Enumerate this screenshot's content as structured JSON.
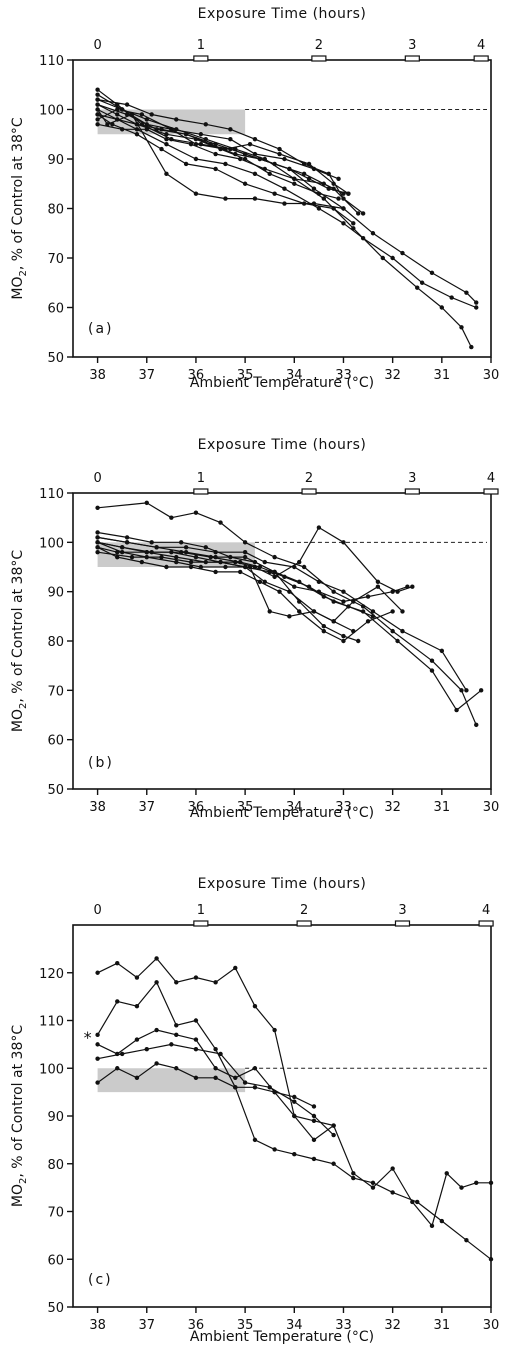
{
  "figure": {
    "xlabel_top": "Exposure Time (hours)",
    "xlabel_bottom": "Ambient Temperature (°C)",
    "ylabel_main": "MO",
    "ylabel_sub": "2",
    "ylabel_rest": ", % of Control at 38°C",
    "asterisk": "*"
  },
  "chart_data": [
    {
      "type": "line",
      "panel_label": "(a)",
      "x_axis": {
        "reversed": true,
        "xlim": [
          38.5,
          30
        ],
        "ticks": [
          "38",
          "37",
          "36",
          "35",
          "34",
          "33",
          "32",
          "31",
          "30"
        ]
      },
      "top_axis": {
        "ticks": [
          "0",
          "1",
          "2",
          "3",
          "4"
        ],
        "tick_temperatures": [
          38,
          35.9,
          33.5,
          31.6,
          30.2
        ]
      },
      "y_axis": {
        "ylim": [
          50,
          110
        ],
        "ticks": [
          "50",
          "60",
          "70",
          "80",
          "90",
          "100",
          "110"
        ]
      },
      "reference_line": 100,
      "shaded_band": {
        "x": [
          38,
          35
        ],
        "y": [
          95,
          100
        ]
      },
      "series": [
        {
          "x": [
            38.0,
            37.6,
            37.2,
            36.6,
            36.0,
            35.4,
            34.8,
            34.2,
            33.5,
            33.0,
            32.6,
            32.0,
            31.4,
            30.8,
            30.3
          ],
          "y": [
            100,
            98,
            96,
            93,
            90,
            89,
            87,
            84,
            80,
            77,
            74,
            70,
            65,
            62,
            60
          ]
        },
        {
          "x": [
            38.0,
            37.5,
            37.0,
            36.4,
            35.8,
            35.2,
            34.6,
            34.0,
            33.4,
            32.8,
            32.2,
            31.5,
            31.0,
            30.6,
            30.4
          ],
          "y": [
            102,
            100,
            98,
            96,
            94,
            92,
            90,
            86,
            82,
            76,
            70,
            64,
            60,
            56,
            52
          ]
        },
        {
          "x": [
            38.0,
            37.6,
            37.1,
            36.5,
            35.9,
            35.3,
            34.7,
            34.1,
            33.6,
            33.0,
            32.4,
            31.8,
            31.2,
            30.5,
            30.3
          ],
          "y": [
            104,
            101,
            97,
            94,
            93,
            92,
            90,
            88,
            84,
            80,
            75,
            71,
            67,
            63,
            61
          ]
        },
        {
          "x": [
            38.0,
            37.7,
            37.2,
            36.7,
            36.2,
            35.6,
            35.0,
            34.4,
            33.8,
            33.2,
            32.8
          ],
          "y": [
            99,
            97,
            95,
            92,
            89,
            88,
            85,
            83,
            81,
            80,
            77
          ]
        },
        {
          "x": [
            38.0,
            37.4,
            36.8,
            36.2,
            35.6,
            35.0,
            34.4,
            33.8,
            33.2,
            32.7
          ],
          "y": [
            101,
            99,
            96,
            95,
            93,
            91,
            89,
            87,
            84,
            79
          ]
        },
        {
          "x": [
            38.0,
            37.5,
            37.0,
            36.5,
            35.9,
            35.3,
            34.8,
            34.2,
            33.6,
            33.1
          ],
          "y": [
            103,
            100,
            97,
            96,
            95,
            94,
            91,
            90,
            88,
            86
          ]
        },
        {
          "x": [
            38.0,
            37.6,
            37.1,
            36.5,
            36.0,
            35.4,
            34.9,
            34.3,
            33.7,
            33.2,
            32.9
          ],
          "y": [
            98,
            100,
            99,
            96,
            93,
            92,
            93,
            91,
            89,
            85,
            83
          ]
        },
        {
          "x": [
            38.0,
            37.8,
            37.3,
            36.6,
            36.0,
            35.4,
            34.8,
            34.2,
            33.6,
            33.0
          ],
          "y": [
            100,
            97,
            99,
            87,
            83,
            82,
            82,
            81,
            81,
            80
          ]
        },
        {
          "x": [
            38.0,
            37.6,
            37.2,
            36.7,
            36.2,
            35.7,
            35.2,
            34.7,
            34.1,
            33.7,
            33.3,
            32.9
          ],
          "y": [
            101,
            99,
            97,
            96,
            95,
            93,
            91,
            90,
            88,
            86,
            84,
            83
          ]
        },
        {
          "x": [
            38.0,
            37.5,
            37.0,
            36.6,
            36.1,
            35.6,
            35.1,
            34.6,
            34.0,
            33.4,
            33.0
          ],
          "y": [
            97,
            96,
            96,
            94,
            93,
            91,
            90,
            88,
            86,
            85,
            83
          ]
        },
        {
          "x": [
            38.0,
            37.4,
            36.9,
            36.4,
            35.8,
            35.3,
            34.8,
            34.3,
            33.8,
            33.3,
            33.0,
            32.6
          ],
          "y": [
            102,
            101,
            99,
            98,
            97,
            96,
            94,
            92,
            89,
            87,
            82,
            79
          ]
        },
        {
          "x": [
            38.0,
            37.6,
            37.2,
            36.6,
            36.0,
            35.5,
            35.0,
            34.5,
            34.0,
            33.5,
            33.1
          ],
          "y": [
            99,
            98,
            97,
            95,
            94,
            92,
            90,
            87,
            85,
            83,
            82
          ]
        }
      ]
    },
    {
      "type": "line",
      "panel_label": "(b)",
      "x_axis": {
        "reversed": true,
        "xlim": [
          38.5,
          30
        ],
        "ticks": [
          "38",
          "37",
          "36",
          "35",
          "34",
          "33",
          "32",
          "31",
          "30"
        ]
      },
      "top_axis": {
        "ticks": [
          "0",
          "1",
          "2",
          "3",
          "4"
        ],
        "tick_temperatures": [
          38,
          35.9,
          33.7,
          31.6,
          30.0
        ]
      },
      "y_axis": {
        "ylim": [
          50,
          110
        ],
        "ticks": [
          "50",
          "60",
          "70",
          "80",
          "90",
          "100",
          "110"
        ]
      },
      "reference_line": 100,
      "shaded_band": {
        "x": [
          38,
          34.8
        ],
        "y": [
          95,
          100
        ]
      },
      "series": [
        {
          "x": [
            38.0,
            37.0,
            36.5,
            36.0,
            35.5,
            35.0,
            34.4,
            33.8,
            33.2,
            32.6,
            32.0,
            31.2,
            30.6,
            30.3
          ],
          "y": [
            107,
            108,
            105,
            106,
            104,
            100,
            97,
            95,
            90,
            87,
            82,
            76,
            70,
            63
          ]
        },
        {
          "x": [
            38.0,
            37.4,
            36.8,
            36.2,
            35.6,
            35.0,
            34.6,
            34.0,
            33.5,
            33.0,
            32.4,
            31.8,
            31.0,
            30.5
          ],
          "y": [
            101,
            100,
            99,
            99,
            98,
            98,
            96,
            95,
            92,
            90,
            86,
            82,
            78,
            70
          ]
        },
        {
          "x": [
            38.0,
            37.5,
            36.9,
            36.3,
            35.7,
            35.1,
            34.7,
            34.2,
            33.7,
            33.2,
            32.6,
            31.9,
            31.2,
            30.7,
            30.2
          ],
          "y": [
            100,
            99,
            98,
            98,
            97,
            96,
            95,
            93,
            91,
            88,
            86,
            80,
            74,
            66,
            70
          ]
        },
        {
          "x": [
            38.0,
            37.6,
            37.0,
            36.4,
            35.8,
            35.2,
            34.8,
            34.4,
            33.9,
            33.5,
            33.0,
            32.3,
            31.9,
            31.6
          ],
          "y": [
            99,
            98,
            98,
            97,
            96,
            96,
            95,
            93,
            96,
            103,
            100,
            92,
            90,
            91
          ]
        },
        {
          "x": [
            38.0,
            37.3,
            36.7,
            36.1,
            35.5,
            35.0,
            34.6,
            34.1,
            33.6,
            33.2,
            32.8
          ],
          "y": [
            98,
            97,
            97,
            96,
            96,
            95,
            92,
            90,
            86,
            84,
            82
          ]
        },
        {
          "x": [
            38.0,
            37.4,
            36.8,
            36.2,
            35.6,
            35.0,
            34.4,
            33.9,
            33.4,
            33.0,
            32.7
          ],
          "y": [
            101,
            100,
            99,
            98,
            97,
            97,
            94,
            88,
            83,
            81,
            80
          ]
        },
        {
          "x": [
            38.0,
            37.5,
            37.0,
            36.4,
            35.9,
            35.4,
            34.9,
            34.5,
            34.1,
            33.6,
            33.2,
            32.8,
            32.3,
            31.8
          ],
          "y": [
            100,
            98,
            97,
            96,
            95,
            95,
            95,
            86,
            85,
            86,
            84,
            88,
            91,
            86
          ]
        },
        {
          "x": [
            38.0,
            37.6,
            37.1,
            36.6,
            36.1,
            35.6,
            35.1,
            34.7,
            34.3,
            33.9,
            33.4,
            33.0,
            32.5,
            32.0
          ],
          "y": [
            99,
            97,
            96,
            95,
            95,
            94,
            94,
            92,
            90,
            86,
            82,
            80,
            84,
            86
          ]
        },
        {
          "x": [
            38.0,
            37.4,
            36.9,
            36.3,
            35.8,
            35.3,
            34.8,
            34.4,
            33.9,
            33.4,
            32.9,
            32.4
          ],
          "y": [
            102,
            101,
            100,
            100,
            99,
            97,
            96,
            94,
            92,
            89,
            87,
            85
          ]
        },
        {
          "x": [
            38.0,
            37.5,
            37.0,
            36.5,
            36.0,
            35.5,
            35.0,
            34.5,
            34.0,
            33.5,
            33.0,
            32.5,
            32.0,
            31.7
          ],
          "y": [
            100,
            99,
            98,
            98,
            97,
            96,
            95,
            94,
            91,
            90,
            88,
            89,
            90,
            91
          ]
        }
      ]
    },
    {
      "type": "line",
      "panel_label": "(c)",
      "x_axis": {
        "reversed": true,
        "xlim": [
          38.5,
          30
        ],
        "ticks": [
          "38",
          "37",
          "36",
          "35",
          "34",
          "33",
          "32",
          "31",
          "30"
        ]
      },
      "top_axis": {
        "ticks": [
          "0",
          "1",
          "2",
          "3",
          "4"
        ],
        "tick_temperatures": [
          38,
          35.9,
          33.8,
          31.8,
          30.1
        ]
      },
      "y_axis": {
        "ylim": [
          50,
          130
        ],
        "ticks": [
          "50",
          "60",
          "70",
          "80",
          "90",
          "100",
          "110",
          "120"
        ]
      },
      "reference_line": 100,
      "shaded_band": {
        "x": [
          38,
          35
        ],
        "y": [
          95,
          100
        ]
      },
      "series": [
        {
          "x": [
            38.0,
            37.6,
            37.2,
            36.8,
            36.4,
            36.0,
            35.6,
            35.2,
            34.8,
            34.4,
            34.0,
            33.6,
            33.2,
            32.8,
            32.4,
            32.0,
            31.6,
            31.2,
            30.9,
            30.6,
            30.3,
            30.0
          ],
          "y": [
            120,
            122,
            119,
            123,
            118,
            119,
            118,
            121,
            113,
            108,
            90,
            85,
            88,
            78,
            75,
            79,
            72,
            67,
            78,
            75,
            76,
            76
          ]
        },
        {
          "x": [
            38.0,
            37.6,
            37.2,
            36.8,
            36.4,
            36.0,
            35.6,
            35.2,
            34.8,
            34.4,
            34.0,
            33.6,
            33.2,
            32.8,
            32.4,
            32.0,
            31.5,
            31.0,
            30.5,
            30.0
          ],
          "y": [
            107,
            114,
            113,
            118,
            109,
            110,
            104,
            96,
            85,
            83,
            82,
            81,
            80,
            77,
            76,
            74,
            72,
            68,
            64,
            60
          ]
        },
        {
          "x": [
            38.0,
            37.6,
            37.2,
            36.8,
            36.4,
            36.0,
            35.6,
            35.2,
            34.8,
            34.4,
            34.0,
            33.6
          ],
          "y": [
            105,
            103,
            106,
            108,
            107,
            106,
            100,
            98,
            100,
            95,
            94,
            92
          ]
        },
        {
          "x": [
            38.0,
            37.5,
            37.0,
            36.5,
            36.0,
            35.5,
            35.0,
            34.5,
            34.0,
            33.6,
            33.2
          ],
          "y": [
            102,
            103,
            104,
            105,
            104,
            103,
            97,
            96,
            93,
            90,
            86
          ]
        },
        {
          "x": [
            38.0,
            37.6,
            37.2,
            36.8,
            36.4,
            36.0,
            35.6,
            35.2,
            34.8,
            34.4,
            34.0,
            33.6,
            33.2
          ],
          "y": [
            97,
            100,
            98,
            101,
            100,
            98,
            98,
            96,
            96,
            95,
            90,
            89,
            88
          ]
        }
      ]
    }
  ]
}
